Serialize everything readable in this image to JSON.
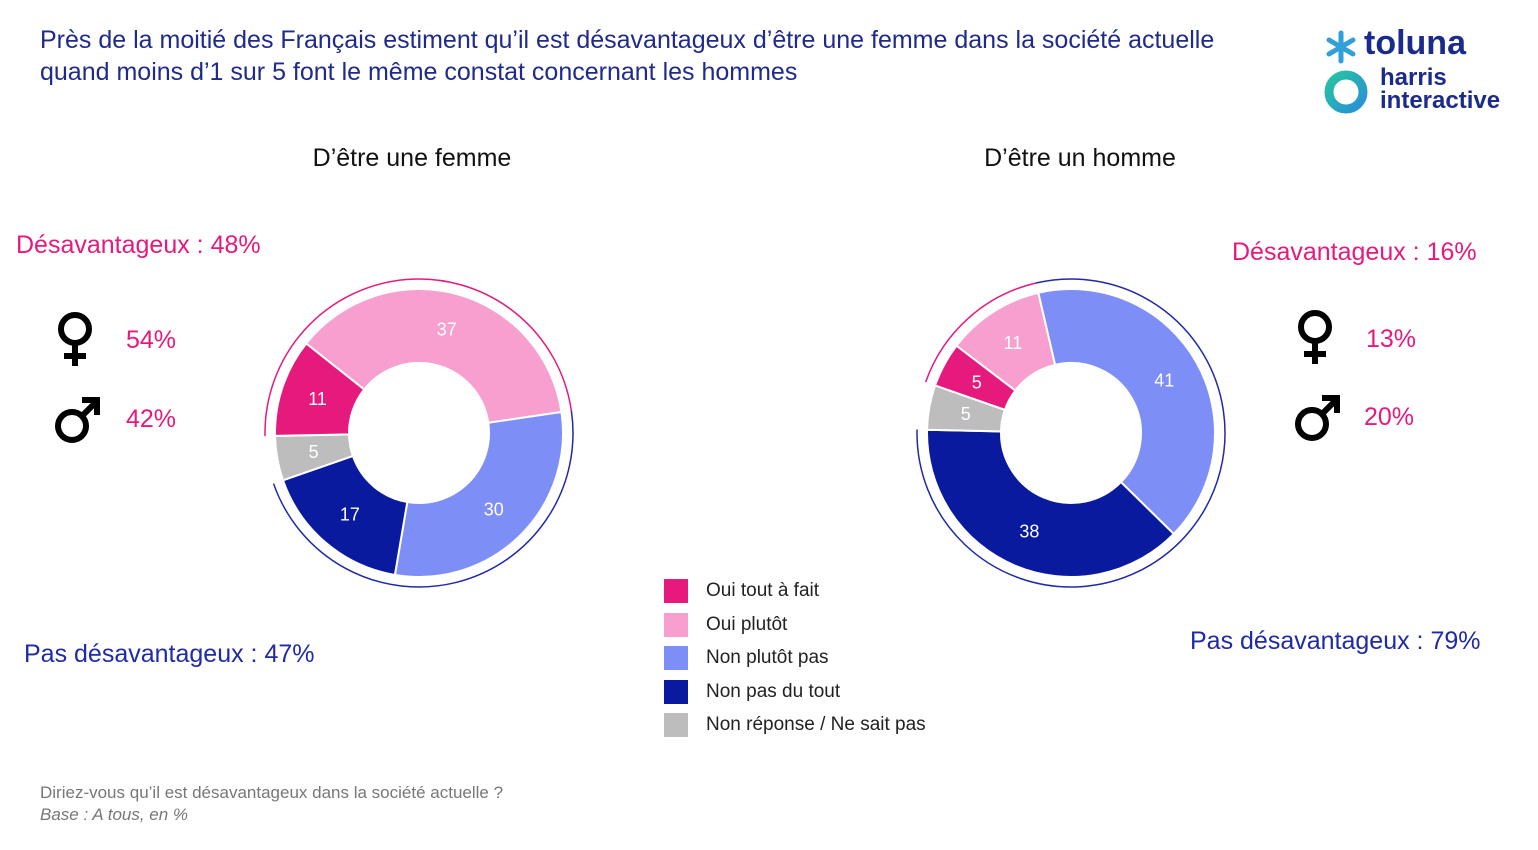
{
  "title": "Près de la moitié des Français estiment qu’il est désavantageux d’être une femme dans la société actuelle quand moins d’1 sur 5 font le même constat concernant les hommes",
  "logo": {
    "brand_top": "toluna",
    "brand_bottom_1": "harris",
    "brand_bottom_2": "interactive"
  },
  "colors": {
    "oui_tout_a_fait": "#e6197d",
    "oui_plutot": "#f7a0d0",
    "non_plutot_pas": "#7d8ef7",
    "non_pas_du_tout": "#0a1a9e",
    "non_reponse": "#bdbdbd",
    "accent_pink": "#e6197d",
    "accent_blue": "#1f2aa6"
  },
  "legend": [
    {
      "key": "oui_tout_a_fait",
      "label": "Oui tout à fait"
    },
    {
      "key": "oui_plutot",
      "label": "Oui plutôt"
    },
    {
      "key": "non_plutot_pas",
      "label": "Non plutôt pas"
    },
    {
      "key": "non_pas_du_tout",
      "label": "Non pas du tout"
    },
    {
      "key": "non_reponse",
      "label": "Non réponse / Ne sait pas"
    }
  ],
  "chart_data": [
    {
      "type": "pie",
      "title": "D’être une femme",
      "categories": [
        "Oui tout à fait",
        "Oui plutôt",
        "Non plutôt pas",
        "Non pas du tout",
        "Non réponse / Ne sait pas"
      ],
      "values": [
        11,
        37,
        30,
        17,
        5
      ],
      "summary_top": "Désavantageux : 48%",
      "summary_bottom": "Pas désavantageux : 47%",
      "female_value": "54%",
      "male_value": "42%"
    },
    {
      "type": "pie",
      "title": "D’être un homme",
      "categories": [
        "Oui tout à fait",
        "Oui plutôt",
        "Non plutôt pas",
        "Non pas du tout",
        "Non réponse / Ne sait pas"
      ],
      "values": [
        5,
        11,
        41,
        38,
        5
      ],
      "summary_top": "Désavantageux : 16%",
      "summary_bottom": "Pas désavantageux : 79%",
      "female_value": "13%",
      "male_value": "20%"
    }
  ],
  "footnote": {
    "question": "Diriez-vous qu’il est désavantageux dans la société actuelle ?",
    "base": "Base : A tous, en %"
  }
}
